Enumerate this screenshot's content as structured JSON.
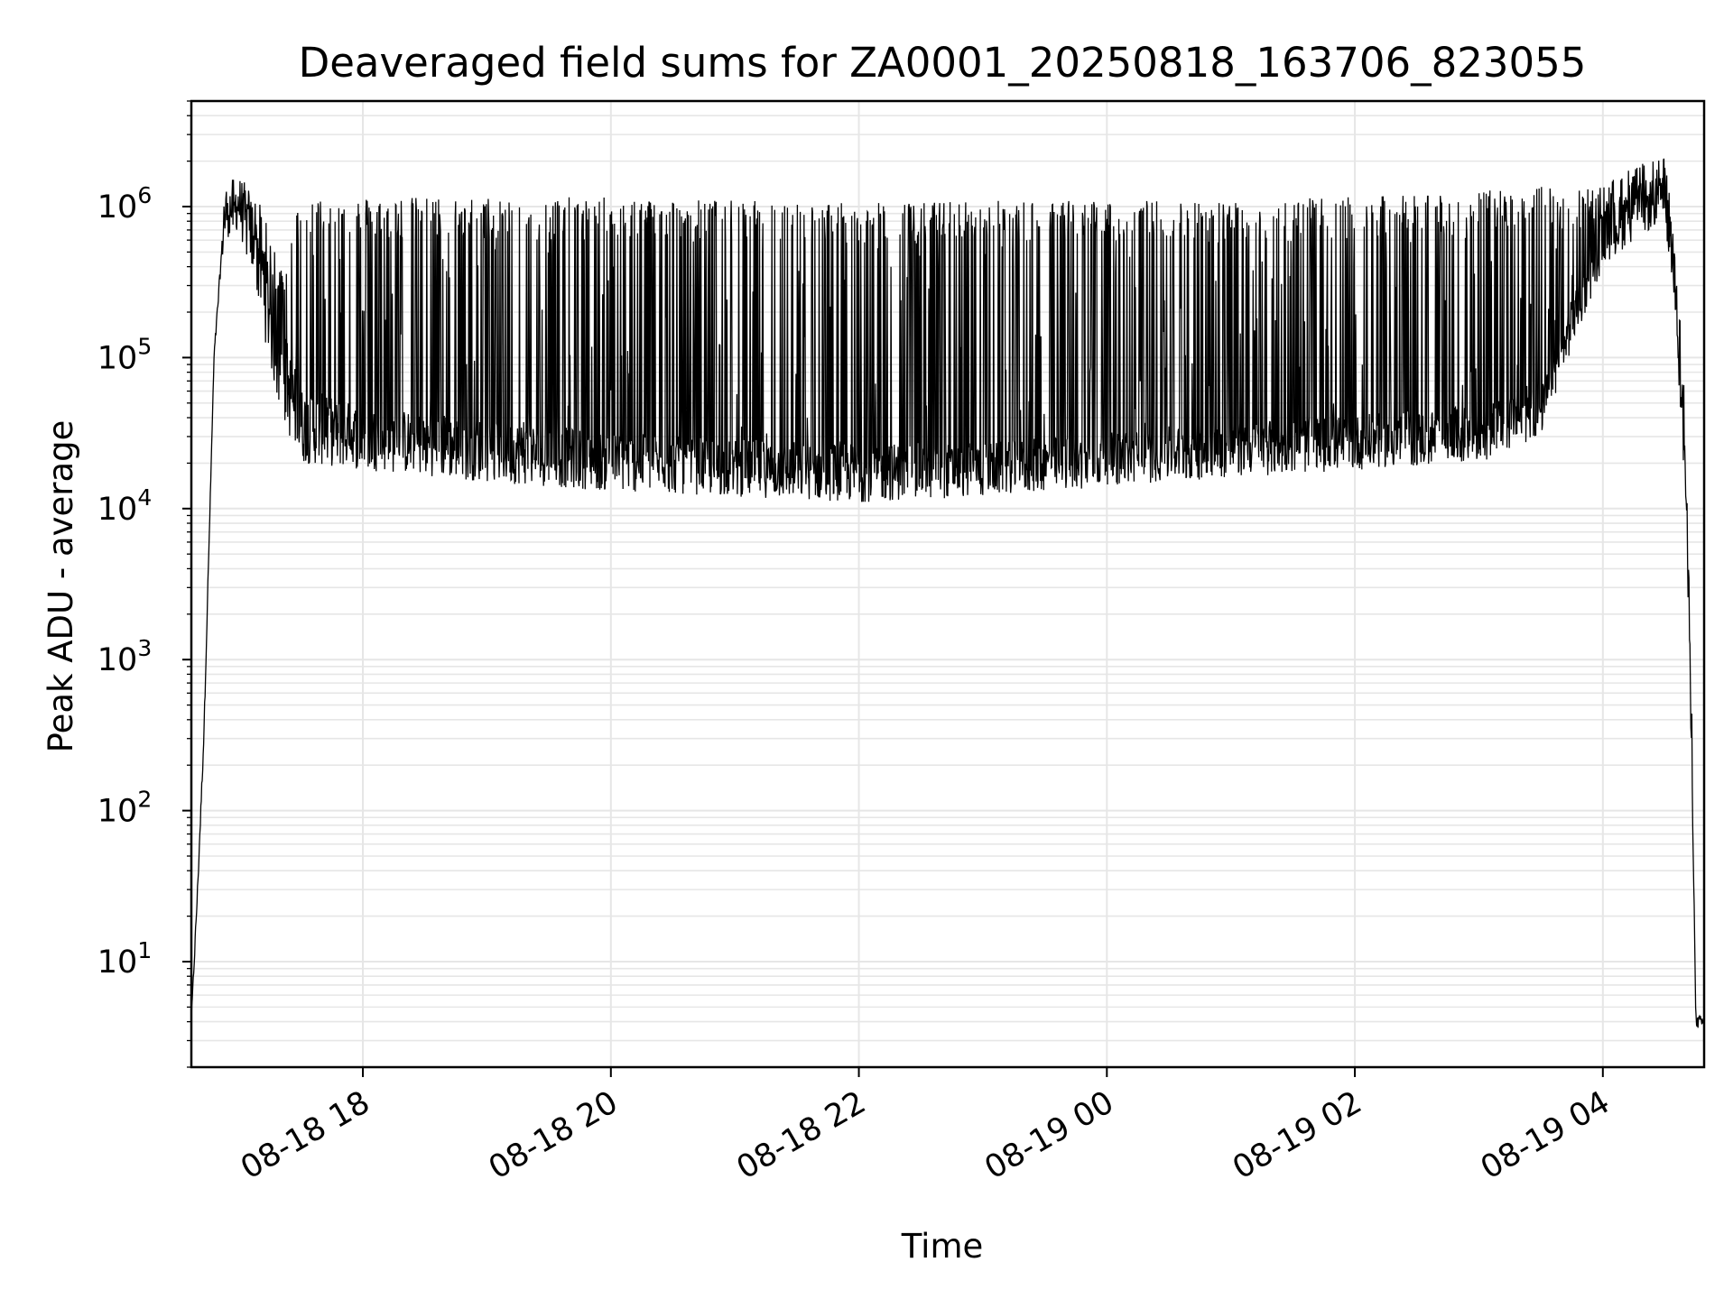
{
  "chart_data": {
    "type": "line",
    "title": "Deaveraged field sums for ZA0001_20250818_163706_823055",
    "xlabel": "Time",
    "ylabel": "Peak ADU - average",
    "y_scale": "log",
    "ylim": [
      2,
      5000000
    ],
    "xlim": [
      "08-18 16:37",
      "08-19 04:49"
    ],
    "grid": true,
    "x_ticks": [
      "08-18 18",
      "08-18 20",
      "08-18 22",
      "08-19 00",
      "08-19 02",
      "08-19 04"
    ],
    "y_ticks": [
      {
        "base": "10",
        "exp": "1",
        "value": 10
      },
      {
        "base": "10",
        "exp": "2",
        "value": 100
      },
      {
        "base": "10",
        "exp": "3",
        "value": 1000
      },
      {
        "base": "10",
        "exp": "4",
        "value": 10000
      },
      {
        "base": "10",
        "exp": "5",
        "value": 100000
      },
      {
        "base": "10",
        "exp": "6",
        "value": 1000000
      }
    ],
    "series": [
      {
        "color": "#000000",
        "envelope": {
          "time": [
            "08-18 16:37",
            "08-18 16:40",
            "08-18 16:43",
            "08-18 16:48",
            "08-18 16:53",
            "08-18 17:00",
            "08-18 17:10",
            "08-18 17:20",
            "08-18 17:30",
            "08-18 18:00",
            "08-18 19:00",
            "08-18 20:00",
            "08-18 21:00",
            "08-18 22:00",
            "08-18 23:00",
            "08-19 00:00",
            "08-19 01:00",
            "08-19 02:00",
            "08-19 03:00",
            "08-19 03:30",
            "08-19 04:00",
            "08-19 04:15",
            "08-19 04:30",
            "08-19 04:35",
            "08-19 04:40",
            "08-19 04:43",
            "08-19 04:45",
            "08-19 04:49"
          ],
          "upper": [
            4,
            30,
            300,
            100000,
            1000000,
            1300000,
            1000000,
            400000,
            1100000,
            1100000,
            1100000,
            1100000,
            1050000,
            1000000,
            1050000,
            1050000,
            1050000,
            1100000,
            1200000,
            1300000,
            1300000,
            1800000,
            2000000,
            600000,
            50000,
            500,
            4,
            4
          ],
          "typical": [
            4,
            30,
            300,
            100000,
            900000,
            1000000,
            700000,
            120000,
            40000,
            30000,
            25000,
            20000,
            18000,
            17000,
            17000,
            20000,
            24000,
            26000,
            30000,
            40000,
            600000,
            900000,
            1000000,
            300000,
            20000,
            300,
            4,
            4
          ],
          "lower": [
            4,
            30,
            300,
            100000,
            600000,
            700000,
            200000,
            40000,
            20000,
            18000,
            15000,
            13000,
            12000,
            11000,
            12000,
            14000,
            16000,
            18000,
            20000,
            30000,
            400000,
            600000,
            800000,
            200000,
            10000,
            200,
            4,
            4
          ]
        }
      }
    ]
  }
}
